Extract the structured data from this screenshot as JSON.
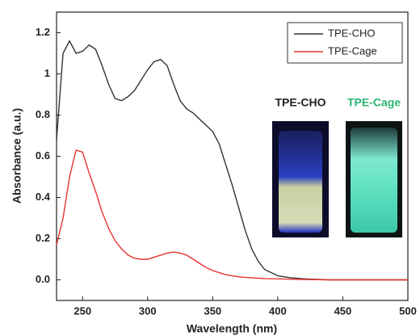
{
  "chart_data": {
    "type": "line",
    "xlabel": "Wavelength (nm)",
    "ylabel": "Absorbance (a.u.)",
    "x": [
      230,
      235,
      240,
      245,
      250,
      255,
      260,
      265,
      270,
      275,
      280,
      285,
      290,
      295,
      300,
      305,
      310,
      315,
      320,
      325,
      330,
      335,
      340,
      345,
      350,
      355,
      360,
      365,
      370,
      375,
      380,
      385,
      390,
      400,
      410,
      420,
      440,
      460,
      480,
      500
    ],
    "series": [
      {
        "name": "TPE-CHO",
        "color": "#333333",
        "values": [
          0.68,
          1.1,
          1.16,
          1.1,
          1.11,
          1.14,
          1.12,
          1.04,
          0.95,
          0.88,
          0.87,
          0.89,
          0.92,
          0.97,
          1.02,
          1.06,
          1.07,
          1.04,
          0.95,
          0.87,
          0.83,
          0.81,
          0.78,
          0.75,
          0.72,
          0.66,
          0.56,
          0.46,
          0.35,
          0.24,
          0.15,
          0.09,
          0.05,
          0.02,
          0.01,
          0.005,
          0,
          0,
          0,
          0
        ]
      },
      {
        "name": "TPE-Cage",
        "color": "#e8322e",
        "values": [
          0.17,
          0.3,
          0.5,
          0.63,
          0.62,
          0.52,
          0.43,
          0.33,
          0.25,
          0.19,
          0.15,
          0.12,
          0.105,
          0.1,
          0.1,
          0.11,
          0.12,
          0.13,
          0.135,
          0.13,
          0.12,
          0.1,
          0.08,
          0.06,
          0.045,
          0.035,
          0.025,
          0.02,
          0.015,
          0.012,
          0.01,
          0.008,
          0.006,
          0.005,
          0.003,
          0.002,
          0,
          0,
          0,
          0
        ]
      }
    ],
    "xlim": [
      230,
      500
    ],
    "xticks": [
      250,
      300,
      350,
      400,
      450,
      500
    ],
    "ylim": [
      -0.1,
      1.3
    ],
    "yticks": [
      {
        "value": 0,
        "label": "0.0"
      },
      0.2,
      0.4,
      0.6,
      0.8,
      1,
      {
        "value": 1.2,
        "label": "1.2"
      }
    ],
    "yticks_fix": null,
    "legend": "upper right",
    "annotations": [
      {
        "text": "TPE-CHO",
        "color": "#222222"
      },
      {
        "text": "TPE-Cage",
        "color": "#2bb673"
      }
    ]
  }
}
